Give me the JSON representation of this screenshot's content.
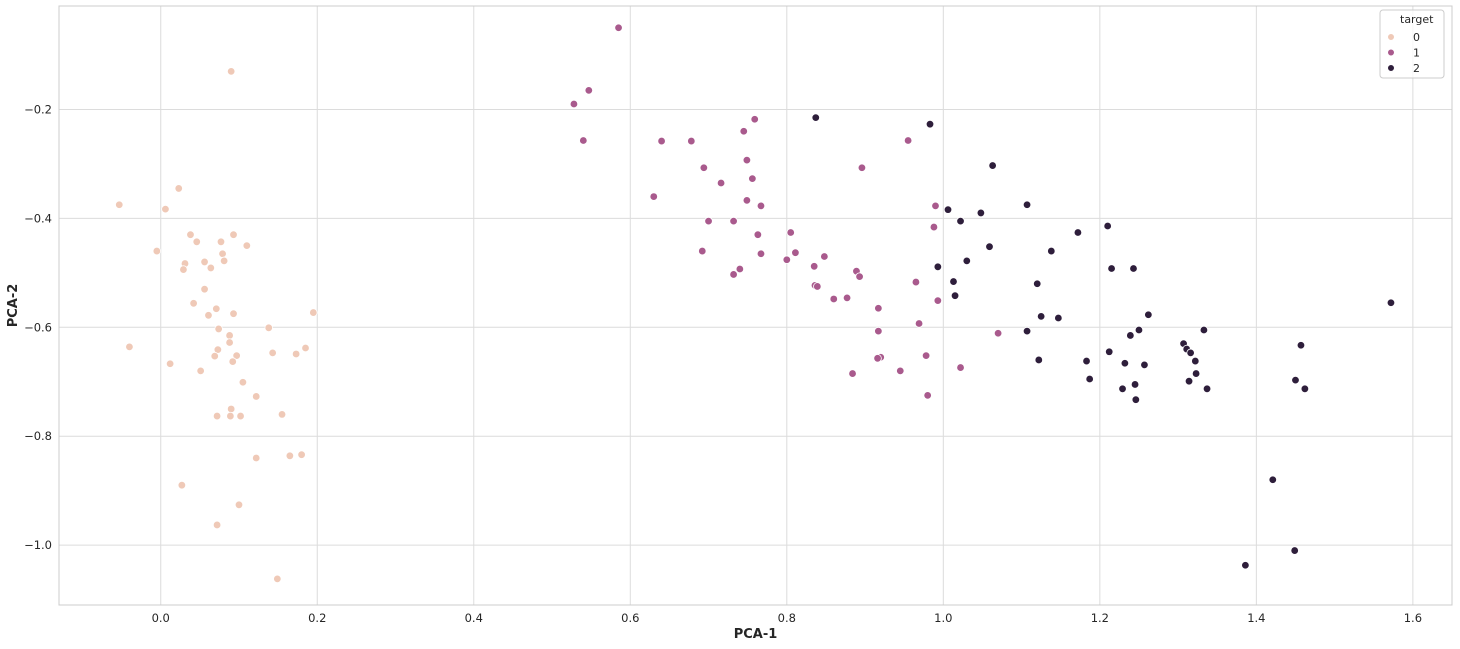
{
  "chart_data": {
    "type": "scatter",
    "xlabel": "PCA-1",
    "ylabel": "PCA-2",
    "xlim": [
      -0.13,
      1.65
    ],
    "ylim": [
      -1.11,
      -0.01
    ],
    "xticks": [
      0.0,
      0.2,
      0.4,
      0.6,
      0.8,
      1.0,
      1.2,
      1.4,
      1.6
    ],
    "yticks": [
      -0.2,
      -0.4,
      -0.6,
      -0.8,
      -1.0
    ],
    "xtick_labels": [
      "0.0",
      "0.2",
      "0.4",
      "0.6",
      "0.8",
      "1.0",
      "1.2",
      "1.4",
      "1.6"
    ],
    "ytick_labels": [
      "−0.2",
      "−0.4",
      "−0.6",
      "−0.8",
      "−1.0"
    ],
    "grid": true,
    "legend": {
      "title": "target",
      "placement": "top-right",
      "entries": [
        "0",
        "1",
        "2"
      ]
    },
    "series": [
      {
        "name": "0",
        "color": "#efc9b7",
        "points": [
          [
            0.09,
            -0.13
          ],
          [
            0.023,
            -0.345
          ],
          [
            0.006,
            -0.383
          ],
          [
            -0.053,
            -0.375
          ],
          [
            0.038,
            -0.43
          ],
          [
            0.093,
            -0.43
          ],
          [
            0.046,
            -0.443
          ],
          [
            0.077,
            -0.443
          ],
          [
            0.11,
            -0.45
          ],
          [
            -0.005,
            -0.46
          ],
          [
            0.079,
            -0.465
          ],
          [
            0.031,
            -0.483
          ],
          [
            0.081,
            -0.478
          ],
          [
            0.056,
            -0.48
          ],
          [
            0.064,
            -0.491
          ],
          [
            0.029,
            -0.494
          ],
          [
            0.056,
            -0.53
          ],
          [
            0.042,
            -0.556
          ],
          [
            0.071,
            -0.566
          ],
          [
            0.195,
            -0.573
          ],
          [
            0.093,
            -0.575
          ],
          [
            0.061,
            -0.578
          ],
          [
            0.074,
            -0.603
          ],
          [
            0.138,
            -0.601
          ],
          [
            0.088,
            -0.615
          ],
          [
            0.088,
            -0.628
          ],
          [
            -0.04,
            -0.636
          ],
          [
            0.073,
            -0.641
          ],
          [
            0.185,
            -0.638
          ],
          [
            0.143,
            -0.647
          ],
          [
            0.173,
            -0.649
          ],
          [
            0.097,
            -0.652
          ],
          [
            0.069,
            -0.653
          ],
          [
            0.092,
            -0.663
          ],
          [
            0.012,
            -0.667
          ],
          [
            0.051,
            -0.68
          ],
          [
            0.105,
            -0.701
          ],
          [
            0.122,
            -0.727
          ],
          [
            0.09,
            -0.75
          ],
          [
            0.155,
            -0.76
          ],
          [
            0.072,
            -0.763
          ],
          [
            0.089,
            -0.763
          ],
          [
            0.102,
            -0.763
          ],
          [
            0.122,
            -0.84
          ],
          [
            0.165,
            -0.836
          ],
          [
            0.18,
            -0.834
          ],
          [
            0.027,
            -0.89
          ],
          [
            0.1,
            -0.926
          ],
          [
            0.072,
            -0.963
          ],
          [
            0.149,
            -1.062
          ]
        ]
      },
      {
        "name": "1",
        "color": "#a95a8d",
        "points": [
          [
            0.585,
            -0.05
          ],
          [
            0.547,
            -0.165
          ],
          [
            0.528,
            -0.19
          ],
          [
            0.759,
            -0.218
          ],
          [
            0.745,
            -0.24
          ],
          [
            0.54,
            -0.257
          ],
          [
            0.64,
            -0.258
          ],
          [
            0.678,
            -0.258
          ],
          [
            0.955,
            -0.257
          ],
          [
            0.749,
            -0.293
          ],
          [
            0.694,
            -0.307
          ],
          [
            0.896,
            -0.307
          ],
          [
            0.756,
            -0.327
          ],
          [
            0.716,
            -0.335
          ],
          [
            0.63,
            -0.36
          ],
          [
            0.749,
            -0.367
          ],
          [
            0.767,
            -0.377
          ],
          [
            0.99,
            -0.377
          ],
          [
            0.7,
            -0.405
          ],
          [
            0.732,
            -0.405
          ],
          [
            0.988,
            -0.416
          ],
          [
            0.805,
            -0.426
          ],
          [
            0.763,
            -0.43
          ],
          [
            0.692,
            -0.46
          ],
          [
            0.811,
            -0.463
          ],
          [
            0.767,
            -0.465
          ],
          [
            0.848,
            -0.47
          ],
          [
            0.8,
            -0.476
          ],
          [
            0.835,
            -0.488
          ],
          [
            0.74,
            -0.493
          ],
          [
            0.889,
            -0.497
          ],
          [
            0.732,
            -0.503
          ],
          [
            0.893,
            -0.507
          ],
          [
            0.965,
            -0.517
          ],
          [
            0.836,
            -0.523
          ],
          [
            0.839,
            -0.525
          ],
          [
            0.877,
            -0.546
          ],
          [
            0.86,
            -0.548
          ],
          [
            0.993,
            -0.551
          ],
          [
            0.917,
            -0.565
          ],
          [
            0.969,
            -0.593
          ],
          [
            0.917,
            -0.607
          ],
          [
            1.07,
            -0.611
          ],
          [
            0.978,
            -0.652
          ],
          [
            0.92,
            -0.655
          ],
          [
            0.916,
            -0.657
          ],
          [
            1.022,
            -0.674
          ],
          [
            0.945,
            -0.68
          ],
          [
            0.884,
            -0.685
          ],
          [
            0.98,
            -0.725
          ]
        ]
      },
      {
        "name": "2",
        "color": "#2e1e3b",
        "points": [
          [
            0.837,
            -0.215
          ],
          [
            0.983,
            -0.227
          ],
          [
            1.063,
            -0.303
          ],
          [
            1.107,
            -0.375
          ],
          [
            1.006,
            -0.384
          ],
          [
            1.048,
            -0.39
          ],
          [
            1.022,
            -0.405
          ],
          [
            1.21,
            -0.414
          ],
          [
            1.172,
            -0.426
          ],
          [
            1.059,
            -0.452
          ],
          [
            1.138,
            -0.46
          ],
          [
            1.03,
            -0.478
          ],
          [
            0.993,
            -0.489
          ],
          [
            1.215,
            -0.492
          ],
          [
            1.243,
            -0.492
          ],
          [
            1.013,
            -0.516
          ],
          [
            1.12,
            -0.52
          ],
          [
            1.015,
            -0.542
          ],
          [
            1.572,
            -0.555
          ],
          [
            1.262,
            -0.577
          ],
          [
            1.125,
            -0.58
          ],
          [
            1.147,
            -0.583
          ],
          [
            1.25,
            -0.605
          ],
          [
            1.107,
            -0.607
          ],
          [
            1.333,
            -0.605
          ],
          [
            1.239,
            -0.615
          ],
          [
            1.307,
            -0.63
          ],
          [
            1.457,
            -0.633
          ],
          [
            1.311,
            -0.64
          ],
          [
            1.316,
            -0.647
          ],
          [
            1.212,
            -0.645
          ],
          [
            1.122,
            -0.66
          ],
          [
            1.183,
            -0.662
          ],
          [
            1.322,
            -0.662
          ],
          [
            1.232,
            -0.666
          ],
          [
            1.257,
            -0.669
          ],
          [
            1.323,
            -0.685
          ],
          [
            1.187,
            -0.695
          ],
          [
            1.45,
            -0.697
          ],
          [
            1.314,
            -0.699
          ],
          [
            1.245,
            -0.705
          ],
          [
            1.229,
            -0.713
          ],
          [
            1.337,
            -0.713
          ],
          [
            1.462,
            -0.713
          ],
          [
            1.246,
            -0.733
          ],
          [
            1.421,
            -0.88
          ],
          [
            1.449,
            -1.01
          ],
          [
            1.386,
            -1.037
          ]
        ]
      }
    ]
  }
}
